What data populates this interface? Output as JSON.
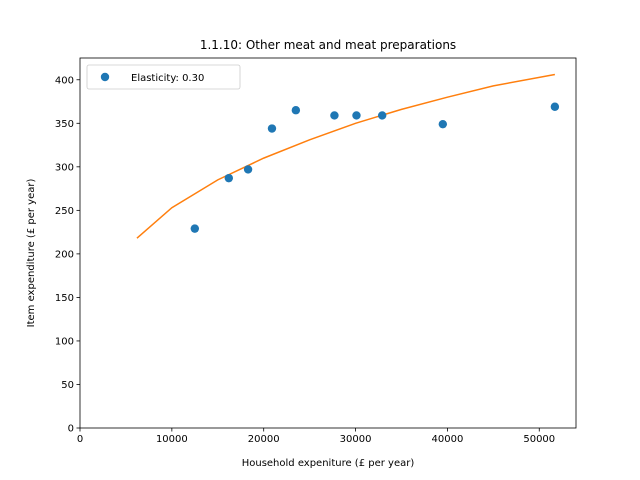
{
  "chart_data": {
    "type": "scatter",
    "title": "1.1.10: Other meat and meat preparations",
    "xlabel": "Household expeniture (£ per year)",
    "ylabel": "Item expenditure (£ per year)",
    "xlim": [
      0,
      54000
    ],
    "ylim": [
      0,
      425
    ],
    "xticks": [
      0,
      10000,
      20000,
      30000,
      40000,
      50000
    ],
    "yticks": [
      0,
      50,
      100,
      150,
      200,
      250,
      300,
      350,
      400
    ],
    "grid": false,
    "legend_position": "top-left",
    "series": [
      {
        "name": "Elasticity: 0.30",
        "kind": "points",
        "color": "#1f77b4",
        "x": [
          12500,
          16200,
          18300,
          20900,
          23500,
          27700,
          30100,
          32900,
          39500,
          51700
        ],
        "y": [
          229,
          287,
          297,
          344,
          365,
          359,
          359,
          359,
          349,
          369
        ]
      },
      {
        "kind": "fit-curve",
        "color": "#ff7f0e",
        "x": [
          6200,
          10000,
          15000,
          20000,
          25000,
          30000,
          35000,
          40000,
          45000,
          51700
        ],
        "y": [
          218,
          253,
          285,
          310,
          331,
          350,
          366,
          380,
          393,
          406
        ]
      }
    ]
  }
}
